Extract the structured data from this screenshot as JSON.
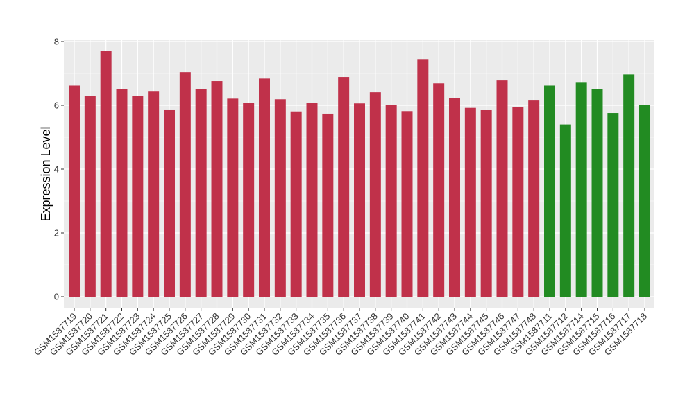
{
  "chart_data": {
    "type": "bar",
    "title": "",
    "xlabel": "",
    "ylabel": "Expression Level",
    "ylim": [
      0,
      8
    ],
    "yticks": [
      0,
      2,
      4,
      6,
      8
    ],
    "grid": true,
    "legend": "none",
    "categories": [
      "GSM1587719",
      "GSM1587720",
      "GSM1587721",
      "GSM1587722",
      "GSM1587723",
      "GSM1587724",
      "GSM1587725",
      "GSM1587726",
      "GSM1587727",
      "GSM1587728",
      "GSM1587729",
      "GSM1587730",
      "GSM1587731",
      "GSM1587732",
      "GSM1587733",
      "GSM1587734",
      "GSM1587735",
      "GSM1587736",
      "GSM1587737",
      "GSM1587738",
      "GSM1587739",
      "GSM1587740",
      "GSM1587741",
      "GSM1587742",
      "GSM1587743",
      "GSM1587744",
      "GSM1587745",
      "GSM1587746",
      "GSM1587747",
      "GSM1587748",
      "GSM1587711",
      "GSM1587712",
      "GSM1587714",
      "GSM1587715",
      "GSM1587716",
      "GSM1587717",
      "GSM1587718"
    ],
    "values": [
      6.62,
      6.3,
      7.7,
      6.5,
      6.3,
      6.43,
      5.87,
      7.04,
      6.52,
      6.76,
      6.21,
      6.08,
      6.84,
      6.19,
      5.81,
      6.08,
      5.74,
      6.89,
      6.06,
      6.41,
      6.02,
      5.82,
      7.45,
      6.69,
      6.22,
      5.92,
      5.85,
      6.78,
      5.94,
      6.15,
      6.62,
      5.4,
      6.71,
      6.5,
      5.76,
      6.97,
      6.02
    ],
    "groups": [
      "red",
      "red",
      "red",
      "red",
      "red",
      "red",
      "red",
      "red",
      "red",
      "red",
      "red",
      "red",
      "red",
      "red",
      "red",
      "red",
      "red",
      "red",
      "red",
      "red",
      "red",
      "red",
      "red",
      "red",
      "red",
      "red",
      "red",
      "red",
      "red",
      "red",
      "green",
      "green",
      "green",
      "green",
      "green",
      "green",
      "green"
    ],
    "colors": {
      "red": "#C0314A",
      "green": "#228B22",
      "panel": "#EBEBEB",
      "grid": "#FFFFFF"
    }
  }
}
